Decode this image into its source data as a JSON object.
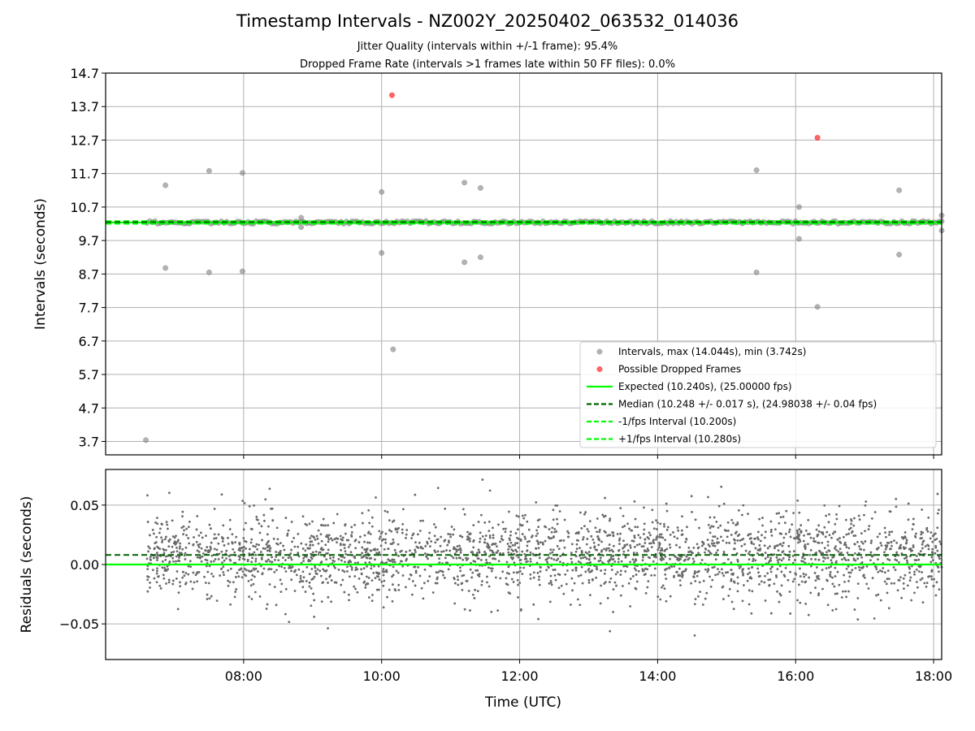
{
  "title": "Timestamp Intervals - NZ002Y_20250402_063532_014036",
  "subtitle_1": "Jitter Quality (intervals within +/-1 frame): 95.4%",
  "subtitle_2": "Dropped Frame Rate (intervals >1 frames late within 50 FF files): 0.0%",
  "colors": {
    "intervals": "#808080",
    "dropped": "#ff0000",
    "expected": "#00ff00",
    "median": "#006400",
    "jitter_bounds": "#00ff00",
    "residuals": "#696969",
    "grid": "#b0b0b0"
  },
  "chart_data": [
    {
      "type": "scatter",
      "panel": "top",
      "xlabel": "",
      "ylabel": "Intervals (seconds)",
      "xlim": [
        "06:00",
        "18:07"
      ],
      "ylim": [
        3.3,
        14.7
      ],
      "yticks": [
        "3.7",
        "4.7",
        "5.7",
        "6.7",
        "7.7",
        "8.7",
        "9.7",
        "10.7",
        "11.7",
        "12.7",
        "13.7",
        "14.7"
      ],
      "grid": true,
      "legend_position": "lower-right",
      "legend": [
        {
          "label": "Intervals, max (14.044s), min (3.742s)",
          "style": "marker",
          "color": "#808080"
        },
        {
          "label": "Possible Dropped Frames",
          "style": "marker",
          "color": "#ff0000"
        },
        {
          "label": "Expected (10.240s), (25.00000 fps)",
          "style": "solid",
          "color": "#00ff00"
        },
        {
          "label": "Median (10.248 +/- 0.017 s), (24.98038 +/- 0.04 fps)",
          "style": "dashed",
          "color": "#006400"
        },
        {
          "label": "-1/fps Interval (10.200s)",
          "style": "dashed",
          "color": "#00ff00"
        },
        {
          "label": "+1/fps Interval (10.280s)",
          "style": "dashed",
          "color": "#00ff00"
        }
      ],
      "reference_lines": {
        "expected": 10.24,
        "median": 10.248,
        "lower": 10.2,
        "upper": 10.28
      },
      "series": [
        {
          "name": "Intervals, max (14.044s), min (3.742s)",
          "baseline_band": {
            "from": "06:36",
            "to": "18:07",
            "center": 10.24,
            "spread": 0.04
          },
          "outliers": [
            {
              "x": "06:35",
              "y": 3.74
            },
            {
              "x": "06:52",
              "y": 11.35
            },
            {
              "x": "06:52",
              "y": 8.88
            },
            {
              "x": "07:30",
              "y": 11.78
            },
            {
              "x": "07:30",
              "y": 8.75
            },
            {
              "x": "07:59",
              "y": 11.72
            },
            {
              "x": "07:59",
              "y": 8.78
            },
            {
              "x": "08:50",
              "y": 10.38
            },
            {
              "x": "08:50",
              "y": 10.1
            },
            {
              "x": "10:00",
              "y": 11.15
            },
            {
              "x": "10:00",
              "y": 9.33
            },
            {
              "x": "10:10",
              "y": 6.45
            },
            {
              "x": "11:12",
              "y": 11.43
            },
            {
              "x": "11:12",
              "y": 9.05
            },
            {
              "x": "11:26",
              "y": 11.27
            },
            {
              "x": "11:26",
              "y": 9.2
            },
            {
              "x": "15:26",
              "y": 11.8
            },
            {
              "x": "15:26",
              "y": 8.75
            },
            {
              "x": "16:03",
              "y": 10.7
            },
            {
              "x": "16:03",
              "y": 9.75
            },
            {
              "x": "16:19",
              "y": 7.72
            },
            {
              "x": "17:30",
              "y": 11.2
            },
            {
              "x": "17:30",
              "y": 9.28
            },
            {
              "x": "18:07",
              "y": 10.45
            },
            {
              "x": "18:07",
              "y": 10.0
            }
          ]
        },
        {
          "name": "Possible Dropped Frames",
          "points": [
            {
              "x": "10:09",
              "y": 14.04
            },
            {
              "x": "16:19",
              "y": 12.77
            }
          ]
        }
      ]
    },
    {
      "type": "scatter",
      "panel": "bottom",
      "xlabel": "Time (UTC)",
      "ylabel": "Residuals (seconds)",
      "xlim": [
        "06:00",
        "18:07"
      ],
      "ylim": [
        -0.08,
        0.08
      ],
      "yticks": [
        "−0.05",
        "0.00",
        "0.05"
      ],
      "ytick_values": [
        -0.05,
        0.0,
        0.05
      ],
      "xticks": [
        "08:00",
        "10:00",
        "12:00",
        "14:00",
        "16:00",
        "18:00"
      ],
      "grid": true,
      "reference_lines": {
        "expected": 0.0,
        "median": 0.008
      },
      "series": [
        {
          "name": "",
          "distribution": {
            "from": "06:36",
            "to": "18:07",
            "mean": 0.008,
            "sd": 0.018,
            "count": 2600
          }
        }
      ]
    }
  ]
}
